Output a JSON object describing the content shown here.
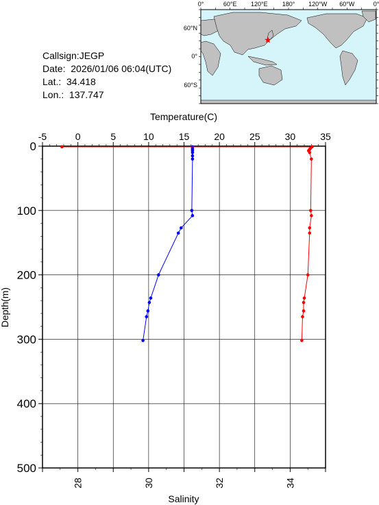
{
  "header": {
    "callsign": "Callsign:JEGP",
    "date": "Date:  2026/01/06 06:04(UTC)",
    "lat": "Lat.:  34.418",
    "lon": "Lon.:  137.747"
  },
  "map": {
    "top_labels": [
      "0°",
      "60°E",
      "120°E",
      "180°",
      "120°W",
      "60°W",
      "0°"
    ],
    "left_labels": [
      "60°N",
      "0°",
      "60°S"
    ],
    "ocean_color": "#d6f5fb",
    "land_color": "#c0c0c0",
    "station_marker_color": "#ff0000",
    "station": {
      "lat": 34.418,
      "lon": 137.747
    }
  },
  "chart_data": {
    "type": "line",
    "y": {
      "label": "Depth(m)",
      "range": [
        0,
        500
      ],
      "inverted": true,
      "ticks": [
        0,
        100,
        200,
        300,
        400,
        500
      ],
      "minor_step": 20
    },
    "x_top": {
      "label": "Temperature(C)",
      "range": [
        -5,
        35
      ],
      "ticks": [
        -5,
        0,
        5,
        10,
        15,
        20,
        25,
        30,
        35
      ]
    },
    "x_bottom": {
      "label": "Salinity",
      "range": [
        27,
        35
      ],
      "ticks": [
        28,
        30,
        32,
        34
      ],
      "minor_step": 0.5
    },
    "grid": true,
    "series": [
      {
        "axis": "temperature",
        "color": "#0000ff",
        "points": [
          [
            16.2,
            1
          ],
          [
            16.2,
            3
          ],
          [
            16.2,
            5
          ],
          [
            16.2,
            7
          ],
          [
            16.2,
            10
          ],
          [
            16.2,
            15
          ],
          [
            16.2,
            20
          ],
          [
            16.1,
            100
          ],
          [
            16.2,
            108
          ],
          [
            14.6,
            127
          ],
          [
            14.2,
            135
          ],
          [
            11.4,
            200
          ],
          [
            10.3,
            236
          ],
          [
            10.1,
            243
          ],
          [
            9.9,
            256
          ],
          [
            9.7,
            265
          ],
          [
            9.2,
            302
          ]
        ]
      },
      {
        "axis": "salinity",
        "color": "#ff0000",
        "points": [
          [
            27.55,
            1
          ],
          [
            34.62,
            1
          ],
          [
            34.58,
            3
          ],
          [
            34.55,
            5
          ],
          [
            34.52,
            7
          ],
          [
            34.55,
            10
          ],
          [
            34.6,
            20
          ],
          [
            34.58,
            100
          ],
          [
            34.6,
            108
          ],
          [
            34.55,
            127
          ],
          [
            34.55,
            135
          ],
          [
            34.5,
            200
          ],
          [
            34.4,
            236
          ],
          [
            34.38,
            243
          ],
          [
            34.38,
            256
          ],
          [
            34.35,
            265
          ],
          [
            34.33,
            302
          ]
        ]
      }
    ]
  }
}
